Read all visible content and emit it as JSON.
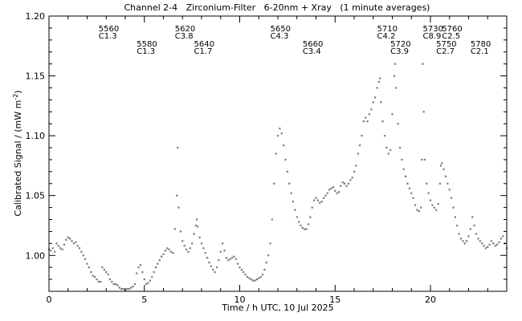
{
  "chart_data": {
    "type": "scatter",
    "title": "Channel 2-4   Zirconium-Filter   6-20nm + Xray   (1 minute averages)",
    "xlabel": "Time / h UTC, 10 Jul 2025",
    "ylabel": "Calibrated Signal / (mW m",
    "ylabel_sup": "-2",
    "ylabel_end": ")",
    "xlim": [
      0,
      24
    ],
    "ylim": [
      0.97,
      1.2
    ],
    "x_ticks": [
      0,
      5,
      10,
      15,
      20
    ],
    "x_tick_labels": [
      "0",
      "5",
      "10",
      "15",
      "20"
    ],
    "y_ticks": [
      1.0,
      1.05,
      1.1,
      1.15,
      1.2
    ],
    "y_tick_labels": [
      "1.00",
      "1.05",
      "1.10",
      "1.15",
      "1.20"
    ],
    "grid": false,
    "point_color": "#7a7a7a",
    "annotations": [
      {
        "id": "5560",
        "class": "C1.3",
        "x": 2.6,
        "row": 1
      },
      {
        "id": "5580",
        "class": "C1.3",
        "x": 4.6,
        "row": 2
      },
      {
        "id": "5620",
        "class": "C3.8",
        "x": 6.6,
        "row": 1
      },
      {
        "id": "5640",
        "class": "C1.7",
        "x": 7.6,
        "row": 2
      },
      {
        "id": "5650",
        "class": "C4.3",
        "x": 11.6,
        "row": 1
      },
      {
        "id": "5660",
        "class": "C3.4",
        "x": 13.3,
        "row": 2
      },
      {
        "id": "5710",
        "class": "C4.2",
        "x": 17.2,
        "row": 1
      },
      {
        "id": "5720",
        "class": "C3.9",
        "x": 17.9,
        "row": 2
      },
      {
        "id": "5730",
        "class": "C8.9",
        "x": 19.6,
        "row": 1
      },
      {
        "id": "5760",
        "class": "C2.5",
        "x": 20.6,
        "row": 1
      },
      {
        "id": "5750",
        "class": "C2.7",
        "x": 20.3,
        "row": 2
      },
      {
        "id": "5780",
        "class": "C2.1",
        "x": 22.1,
        "row": 2
      }
    ],
    "series": [
      {
        "points": [
          [
            0.0,
            1.005
          ],
          [
            0.1,
            1.004
          ],
          [
            0.2,
            1.006
          ],
          [
            0.3,
            1.003
          ],
          [
            0.4,
            1.01
          ],
          [
            0.5,
            1.008
          ],
          [
            0.6,
            1.006
          ],
          [
            0.7,
            1.005
          ],
          [
            0.8,
            1.009
          ],
          [
            0.9,
            1.013
          ],
          [
            1.0,
            1.015
          ],
          [
            1.1,
            1.014
          ],
          [
            1.2,
            1.012
          ],
          [
            1.3,
            1.01
          ],
          [
            1.4,
            1.011
          ],
          [
            1.5,
            1.008
          ],
          [
            1.6,
            1.006
          ],
          [
            1.7,
            1.003
          ],
          [
            1.8,
            1.0
          ],
          [
            1.9,
            0.997
          ],
          [
            2.0,
            0.993
          ],
          [
            2.1,
            0.99
          ],
          [
            2.2,
            0.986
          ],
          [
            2.3,
            0.983
          ],
          [
            2.4,
            0.982
          ],
          [
            2.5,
            0.98
          ],
          [
            2.6,
            0.978
          ],
          [
            2.7,
            0.978
          ],
          [
            2.8,
            0.99
          ],
          [
            2.9,
            0.988
          ],
          [
            3.0,
            0.986
          ],
          [
            3.1,
            0.984
          ],
          [
            3.2,
            0.98
          ],
          [
            3.3,
            0.978
          ],
          [
            3.4,
            0.976
          ],
          [
            3.5,
            0.976
          ],
          [
            3.6,
            0.975
          ],
          [
            3.7,
            0.973
          ],
          [
            3.8,
            0.972
          ],
          [
            3.9,
            0.972
          ],
          [
            4.0,
            0.971
          ],
          [
            4.1,
            0.972
          ],
          [
            4.2,
            0.972
          ],
          [
            4.3,
            0.973
          ],
          [
            4.4,
            0.974
          ],
          [
            4.5,
            0.976
          ],
          [
            4.6,
            0.985
          ],
          [
            4.7,
            0.99
          ],
          [
            4.8,
            0.992
          ],
          [
            4.9,
            0.986
          ],
          [
            5.0,
            0.98
          ],
          [
            5.1,
            0.976
          ],
          [
            5.2,
            0.977
          ],
          [
            5.3,
            0.979
          ],
          [
            5.4,
            0.982
          ],
          [
            5.5,
            0.986
          ],
          [
            5.6,
            0.99
          ],
          [
            5.7,
            0.993
          ],
          [
            5.8,
            0.996
          ],
          [
            5.9,
            0.999
          ],
          [
            6.0,
            1.001
          ],
          [
            6.1,
            1.004
          ],
          [
            6.2,
            1.006
          ],
          [
            6.3,
            1.005
          ],
          [
            6.4,
            1.003
          ],
          [
            6.5,
            1.002
          ],
          [
            6.6,
            1.022
          ],
          [
            6.7,
            1.05
          ],
          [
            6.75,
            1.09
          ],
          [
            6.8,
            1.04
          ],
          [
            6.9,
            1.02
          ],
          [
            7.0,
            1.012
          ],
          [
            7.1,
            1.008
          ],
          [
            7.2,
            1.005
          ],
          [
            7.3,
            1.003
          ],
          [
            7.4,
            1.006
          ],
          [
            7.5,
            1.01
          ],
          [
            7.6,
            1.018
          ],
          [
            7.7,
            1.025
          ],
          [
            7.75,
            1.03
          ],
          [
            7.8,
            1.024
          ],
          [
            7.9,
            1.015
          ],
          [
            8.0,
            1.01
          ],
          [
            8.1,
            1.006
          ],
          [
            8.2,
            1.002
          ],
          [
            8.3,
            0.998
          ],
          [
            8.4,
            0.994
          ],
          [
            8.5,
            0.991
          ],
          [
            8.6,
            0.988
          ],
          [
            8.7,
            0.986
          ],
          [
            8.8,
            0.99
          ],
          [
            8.9,
            0.996
          ],
          [
            9.0,
            1.003
          ],
          [
            9.1,
            1.01
          ],
          [
            9.2,
            1.004
          ],
          [
            9.3,
            0.998
          ],
          [
            9.4,
            0.996
          ],
          [
            9.5,
            0.997
          ],
          [
            9.6,
            0.998
          ],
          [
            9.7,
            0.999
          ],
          [
            9.8,
            0.997
          ],
          [
            9.9,
            0.993
          ],
          [
            10.0,
            0.99
          ],
          [
            10.1,
            0.988
          ],
          [
            10.2,
            0.986
          ],
          [
            10.3,
            0.984
          ],
          [
            10.4,
            0.982
          ],
          [
            10.5,
            0.981
          ],
          [
            10.6,
            0.98
          ],
          [
            10.7,
            0.979
          ],
          [
            10.8,
            0.979
          ],
          [
            10.9,
            0.98
          ],
          [
            11.0,
            0.981
          ],
          [
            11.1,
            0.982
          ],
          [
            11.2,
            0.984
          ],
          [
            11.3,
            0.988
          ],
          [
            11.4,
            0.994
          ],
          [
            11.5,
            1.0
          ],
          [
            11.6,
            1.01
          ],
          [
            11.7,
            1.03
          ],
          [
            11.8,
            1.06
          ],
          [
            11.9,
            1.085
          ],
          [
            12.0,
            1.1
          ],
          [
            12.1,
            1.106
          ],
          [
            12.2,
            1.102
          ],
          [
            12.3,
            1.092
          ],
          [
            12.4,
            1.08
          ],
          [
            12.5,
            1.07
          ],
          [
            12.6,
            1.06
          ],
          [
            12.7,
            1.052
          ],
          [
            12.8,
            1.045
          ],
          [
            12.9,
            1.038
          ],
          [
            13.0,
            1.032
          ],
          [
            13.1,
            1.028
          ],
          [
            13.2,
            1.025
          ],
          [
            13.3,
            1.023
          ],
          [
            13.4,
            1.022
          ],
          [
            13.5,
            1.022
          ],
          [
            13.6,
            1.026
          ],
          [
            13.7,
            1.032
          ],
          [
            13.8,
            1.04
          ],
          [
            13.9,
            1.046
          ],
          [
            14.0,
            1.048
          ],
          [
            14.1,
            1.046
          ],
          [
            14.2,
            1.044
          ],
          [
            14.3,
            1.045
          ],
          [
            14.4,
            1.048
          ],
          [
            14.5,
            1.05
          ],
          [
            14.6,
            1.052
          ],
          [
            14.7,
            1.055
          ],
          [
            14.8,
            1.056
          ],
          [
            14.9,
            1.057
          ],
          [
            15.0,
            1.054
          ],
          [
            15.1,
            1.052
          ],
          [
            15.2,
            1.053
          ],
          [
            15.3,
            1.058
          ],
          [
            15.4,
            1.061
          ],
          [
            15.5,
            1.06
          ],
          [
            15.6,
            1.058
          ],
          [
            15.7,
            1.06
          ],
          [
            15.8,
            1.063
          ],
          [
            15.9,
            1.065
          ],
          [
            16.0,
            1.07
          ],
          [
            16.1,
            1.075
          ],
          [
            16.2,
            1.085
          ],
          [
            16.3,
            1.092
          ],
          [
            16.4,
            1.1
          ],
          [
            16.5,
            1.112
          ],
          [
            16.6,
            1.115
          ],
          [
            16.7,
            1.112
          ],
          [
            16.8,
            1.118
          ],
          [
            16.9,
            1.122
          ],
          [
            17.0,
            1.128
          ],
          [
            17.1,
            1.132
          ],
          [
            17.2,
            1.14
          ],
          [
            17.3,
            1.145
          ],
          [
            17.35,
            1.148
          ],
          [
            17.4,
            1.128
          ],
          [
            17.5,
            1.112
          ],
          [
            17.6,
            1.1
          ],
          [
            17.7,
            1.09
          ],
          [
            17.8,
            1.085
          ],
          [
            17.9,
            1.088
          ],
          [
            18.0,
            1.118
          ],
          [
            18.1,
            1.15
          ],
          [
            18.15,
            1.16
          ],
          [
            18.2,
            1.14
          ],
          [
            18.3,
            1.11
          ],
          [
            18.4,
            1.09
          ],
          [
            18.5,
            1.08
          ],
          [
            18.6,
            1.072
          ],
          [
            18.7,
            1.066
          ],
          [
            18.8,
            1.06
          ],
          [
            18.9,
            1.056
          ],
          [
            19.0,
            1.052
          ],
          [
            19.1,
            1.048
          ],
          [
            19.2,
            1.042
          ],
          [
            19.3,
            1.038
          ],
          [
            19.4,
            1.037
          ],
          [
            19.5,
            1.04
          ],
          [
            19.55,
            1.08
          ],
          [
            19.6,
            1.16
          ],
          [
            19.65,
            1.12
          ],
          [
            19.7,
            1.08
          ],
          [
            19.8,
            1.06
          ],
          [
            19.9,
            1.052
          ],
          [
            20.0,
            1.046
          ],
          [
            20.1,
            1.042
          ],
          [
            20.2,
            1.04
          ],
          [
            20.3,
            1.038
          ],
          [
            20.4,
            1.043
          ],
          [
            20.5,
            1.06
          ],
          [
            20.55,
            1.075
          ],
          [
            20.6,
            1.077
          ],
          [
            20.7,
            1.072
          ],
          [
            20.8,
            1.066
          ],
          [
            20.9,
            1.06
          ],
          [
            21.0,
            1.055
          ],
          [
            21.1,
            1.048
          ],
          [
            21.2,
            1.04
          ],
          [
            21.3,
            1.032
          ],
          [
            21.4,
            1.025
          ],
          [
            21.5,
            1.018
          ],
          [
            21.6,
            1.014
          ],
          [
            21.7,
            1.012
          ],
          [
            21.8,
            1.01
          ],
          [
            21.9,
            1.012
          ],
          [
            22.0,
            1.016
          ],
          [
            22.1,
            1.022
          ],
          [
            22.2,
            1.032
          ],
          [
            22.3,
            1.025
          ],
          [
            22.4,
            1.018
          ],
          [
            22.5,
            1.014
          ],
          [
            22.6,
            1.012
          ],
          [
            22.7,
            1.01
          ],
          [
            22.8,
            1.008
          ],
          [
            22.9,
            1.006
          ],
          [
            23.0,
            1.007
          ],
          [
            23.1,
            1.009
          ],
          [
            23.2,
            1.012
          ],
          [
            23.3,
            1.01
          ],
          [
            23.4,
            1.008
          ],
          [
            23.5,
            1.009
          ],
          [
            23.6,
            1.011
          ],
          [
            23.7,
            1.014
          ],
          [
            23.8,
            1.016
          ],
          [
            23.9,
            1.01
          ],
          [
            24.0,
            1.006
          ]
        ]
      }
    ]
  }
}
